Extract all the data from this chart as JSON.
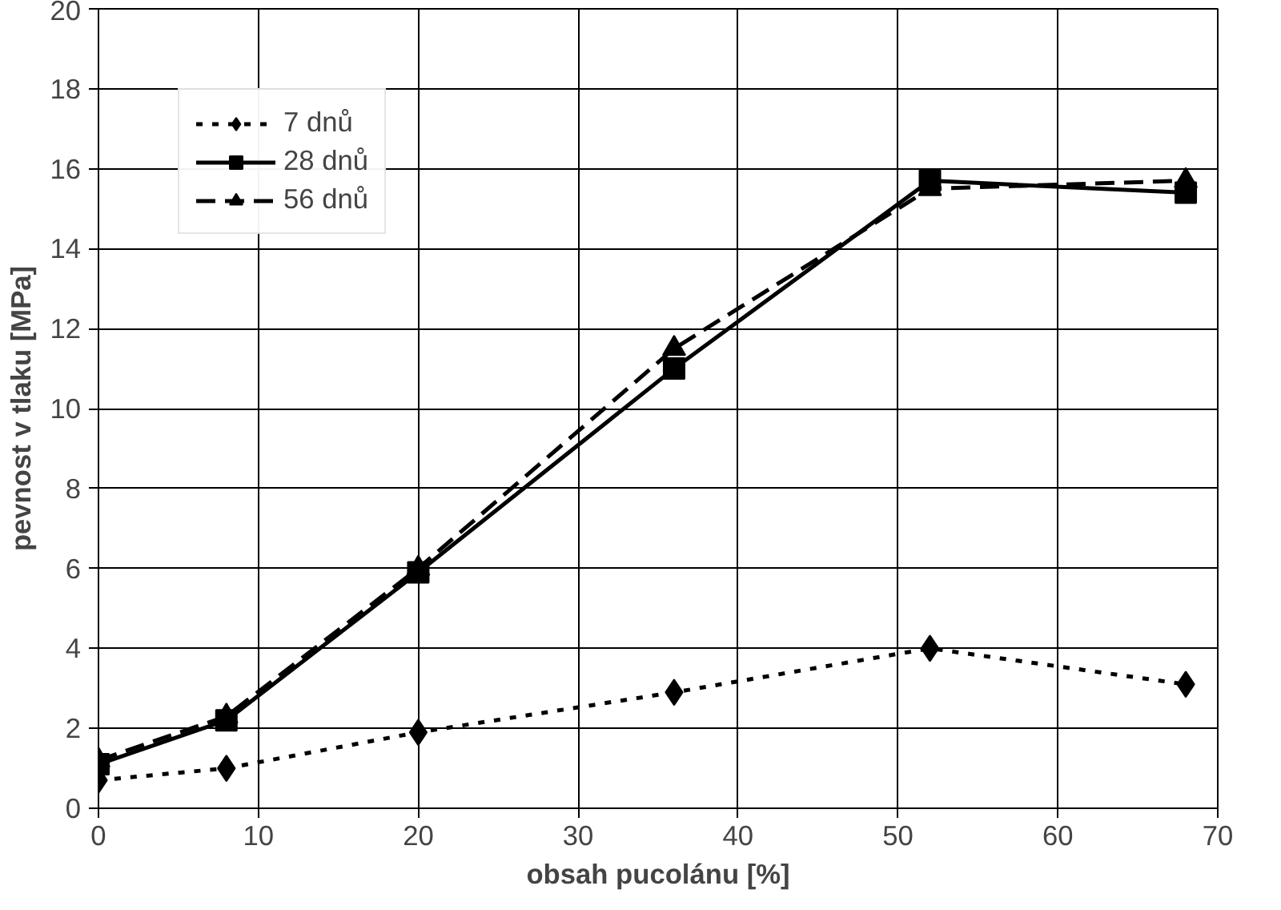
{
  "chart_data": {
    "type": "line",
    "xlabel": "obsah pucolánu [%]",
    "ylabel": "pevnost v tlaku [MPa]",
    "x": [
      0,
      8,
      20,
      36,
      52,
      68
    ],
    "series": [
      {
        "name": "7 dnů",
        "color": "#000000",
        "marker": "diamond",
        "line_style": "dotted",
        "values": [
          0.7,
          1.0,
          1.9,
          2.9,
          4.0,
          3.1
        ]
      },
      {
        "name": "28 dnů",
        "color": "#000000",
        "marker": "square",
        "line_style": "solid",
        "values": [
          1.1,
          2.2,
          5.9,
          11.0,
          15.7,
          15.4
        ]
      },
      {
        "name": "56 dnů",
        "color": "#000000",
        "marker": "triangle",
        "line_style": "dashed",
        "values": [
          1.2,
          2.3,
          6.0,
          11.5,
          15.5,
          15.7
        ]
      }
    ],
    "xlim": [
      0,
      70
    ],
    "xticks": [
      0,
      10,
      20,
      30,
      40,
      50,
      60,
      70
    ],
    "ylim": [
      0,
      20
    ],
    "yticks": [
      0,
      2,
      4,
      6,
      8,
      10,
      12,
      14,
      16,
      18,
      20
    ],
    "grid": true,
    "legend": "top left"
  }
}
